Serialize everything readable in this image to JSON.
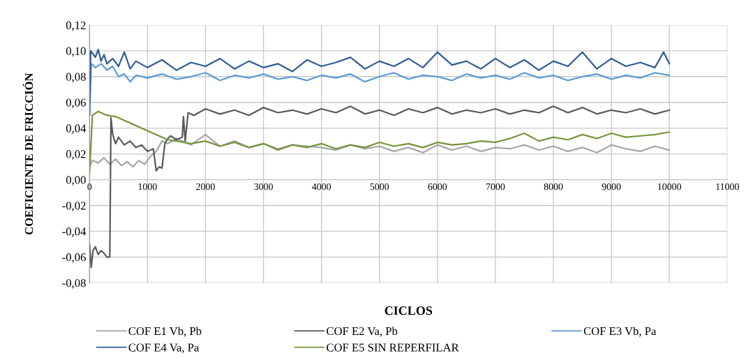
{
  "chart_data": {
    "type": "line",
    "xlabel": "CICLOS",
    "ylabel": "COEFICIENTE DE FRICCIÓN",
    "xlim": [
      0,
      11000
    ],
    "xticks": [
      0,
      1000,
      2000,
      3000,
      4000,
      5000,
      6000,
      7000,
      8000,
      9000,
      10000,
      11000
    ],
    "ylim": [
      -0.08,
      0.12
    ],
    "yticks": [
      {
        "value": -0.08,
        "label": "-0,08"
      },
      {
        "value": -0.06,
        "label": "-0,06"
      },
      {
        "value": -0.04,
        "label": "-0,04"
      },
      {
        "value": -0.02,
        "label": "-0,02"
      },
      {
        "value": 0,
        "label": "0,00"
      },
      {
        "value": 0.02,
        "label": "0,02"
      },
      {
        "value": 0.04,
        "label": "0,04"
      },
      {
        "value": 0.06,
        "label": "0,06"
      },
      {
        "value": 0.08,
        "label": "0,08"
      },
      {
        "value": 0.1,
        "label": "0,10"
      },
      {
        "value": 0.12,
        "label": "0,12"
      }
    ],
    "grid": true,
    "legend": "bottom",
    "marker": "none",
    "line_style": "solid",
    "series": [
      {
        "name": "COF E1 Vb, Pb",
        "color": "#a6a6a6",
        "x": [
          0,
          50,
          150,
          250,
          350,
          450,
          550,
          650,
          750,
          850,
          950,
          1050,
          1150,
          1250,
          1350,
          1500,
          1750,
          2000,
          2250,
          2500,
          2750,
          3000,
          3250,
          3500,
          3750,
          4000,
          4250,
          4500,
          4750,
          5000,
          5250,
          5500,
          5750,
          6000,
          6250,
          6500,
          6750,
          7000,
          7250,
          7500,
          7750,
          8000,
          8250,
          8500,
          8750,
          9000,
          9250,
          9500,
          9750,
          10000
        ],
        "values": [
          0.01,
          0.015,
          0.013,
          0.017,
          0.012,
          0.016,
          0.011,
          0.014,
          0.01,
          0.015,
          0.012,
          0.018,
          0.022,
          0.03,
          0.028,
          0.032,
          0.027,
          0.035,
          0.026,
          0.03,
          0.025,
          0.028,
          0.024,
          0.027,
          0.026,
          0.025,
          0.023,
          0.027,
          0.024,
          0.026,
          0.022,
          0.025,
          0.021,
          0.027,
          0.023,
          0.026,
          0.022,
          0.025,
          0.024,
          0.027,
          0.023,
          0.026,
          0.022,
          0.025,
          0.021,
          0.027,
          0.024,
          0.022,
          0.026,
          0.023
        ]
      },
      {
        "name": "COF E2 Va, Pb",
        "color": "#595959",
        "x": [
          0,
          30,
          60,
          100,
          150,
          200,
          250,
          300,
          350,
          370,
          400,
          450,
          500,
          600,
          700,
          800,
          900,
          1000,
          1100,
          1150,
          1200,
          1250,
          1300,
          1350,
          1400,
          1500,
          1600,
          1620,
          1650,
          1700,
          1800,
          2000,
          2250,
          2500,
          2750,
          3000,
          3250,
          3500,
          3750,
          4000,
          4250,
          4500,
          4750,
          5000,
          5250,
          5500,
          5750,
          6000,
          6250,
          6500,
          6750,
          7000,
          7250,
          7500,
          7750,
          8000,
          8250,
          8500,
          8750,
          9000,
          9250,
          9500,
          9750,
          10000
        ],
        "values": [
          -0.05,
          -0.068,
          -0.055,
          -0.052,
          -0.058,
          -0.055,
          -0.057,
          -0.06,
          -0.06,
          0.048,
          0.035,
          0.028,
          0.033,
          0.027,
          0.03,
          0.025,
          0.027,
          0.022,
          0.024,
          0.007,
          0.01,
          0.009,
          0.028,
          0.032,
          0.034,
          0.031,
          0.033,
          0.049,
          0.03,
          0.052,
          0.05,
          0.055,
          0.051,
          0.054,
          0.05,
          0.056,
          0.052,
          0.054,
          0.051,
          0.055,
          0.052,
          0.057,
          0.051,
          0.054,
          0.05,
          0.055,
          0.052,
          0.056,
          0.051,
          0.054,
          0.052,
          0.055,
          0.051,
          0.054,
          0.052,
          0.057,
          0.052,
          0.056,
          0.051,
          0.054,
          0.052,
          0.055,
          0.051,
          0.054
        ]
      },
      {
        "name": "COF E3 Vb, Pa",
        "color": "#5b9bd5",
        "x": [
          0,
          30,
          100,
          200,
          300,
          400,
          500,
          600,
          700,
          800,
          1000,
          1250,
          1500,
          1750,
          2000,
          2250,
          2500,
          2750,
          3000,
          3250,
          3500,
          3750,
          4000,
          4250,
          4500,
          4750,
          5000,
          5250,
          5500,
          5750,
          6000,
          6250,
          6500,
          6750,
          7000,
          7250,
          7500,
          7750,
          8000,
          8250,
          8500,
          8750,
          9000,
          9250,
          9500,
          9750,
          10000
        ],
        "values": [
          0.05,
          0.09,
          0.087,
          0.09,
          0.085,
          0.088,
          0.08,
          0.082,
          0.076,
          0.081,
          0.079,
          0.082,
          0.078,
          0.08,
          0.083,
          0.077,
          0.081,
          0.079,
          0.082,
          0.078,
          0.08,
          0.077,
          0.081,
          0.079,
          0.082,
          0.076,
          0.08,
          0.083,
          0.078,
          0.081,
          0.08,
          0.077,
          0.082,
          0.079,
          0.081,
          0.078,
          0.083,
          0.079,
          0.081,
          0.077,
          0.08,
          0.082,
          0.078,
          0.081,
          0.079,
          0.083,
          0.081
        ]
      },
      {
        "name": "COF E4 Va, Pa",
        "color": "#2f5d95",
        "x": [
          0,
          20,
          100,
          150,
          200,
          250,
          300,
          400,
          500,
          600,
          700,
          800,
          1000,
          1250,
          1500,
          1750,
          2000,
          2250,
          2500,
          2750,
          3000,
          3250,
          3500,
          3750,
          4000,
          4250,
          4500,
          4750,
          5000,
          5250,
          5500,
          5750,
          6000,
          6250,
          6500,
          6750,
          7000,
          7250,
          7500,
          7750,
          8000,
          8250,
          8500,
          8750,
          9000,
          9250,
          9500,
          9750,
          9900,
          10000
        ],
        "values": [
          0.05,
          0.1,
          0.095,
          0.101,
          0.092,
          0.097,
          0.09,
          0.094,
          0.088,
          0.099,
          0.086,
          0.092,
          0.087,
          0.093,
          0.085,
          0.091,
          0.088,
          0.094,
          0.086,
          0.092,
          0.087,
          0.09,
          0.084,
          0.093,
          0.088,
          0.091,
          0.095,
          0.086,
          0.092,
          0.088,
          0.094,
          0.087,
          0.099,
          0.089,
          0.092,
          0.086,
          0.094,
          0.087,
          0.093,
          0.085,
          0.092,
          0.088,
          0.099,
          0.086,
          0.094,
          0.088,
          0.091,
          0.087,
          0.099,
          0.09
        ]
      },
      {
        "name": "COF E5 SIN REPERFILAR",
        "color": "#77933c",
        "x": [
          0,
          50,
          150,
          300,
          450,
          600,
          750,
          900,
          1050,
          1200,
          1350,
          1500,
          1750,
          2000,
          2250,
          2500,
          2750,
          3000,
          3250,
          3500,
          3750,
          4000,
          4250,
          4500,
          4750,
          5000,
          5250,
          5500,
          5750,
          6000,
          6250,
          6500,
          6750,
          7000,
          7250,
          7500,
          7750,
          8000,
          8250,
          8500,
          8750,
          9000,
          9250,
          9500,
          9750,
          10000
        ],
        "values": [
          0.005,
          0.05,
          0.053,
          0.05,
          0.049,
          0.046,
          0.043,
          0.04,
          0.037,
          0.034,
          0.031,
          0.03,
          0.028,
          0.03,
          0.026,
          0.029,
          0.025,
          0.028,
          0.023,
          0.027,
          0.025,
          0.028,
          0.024,
          0.027,
          0.025,
          0.029,
          0.026,
          0.028,
          0.025,
          0.029,
          0.027,
          0.028,
          0.03,
          0.029,
          0.032,
          0.036,
          0.03,
          0.033,
          0.031,
          0.035,
          0.032,
          0.036,
          0.033,
          0.034,
          0.035,
          0.037
        ]
      }
    ]
  }
}
